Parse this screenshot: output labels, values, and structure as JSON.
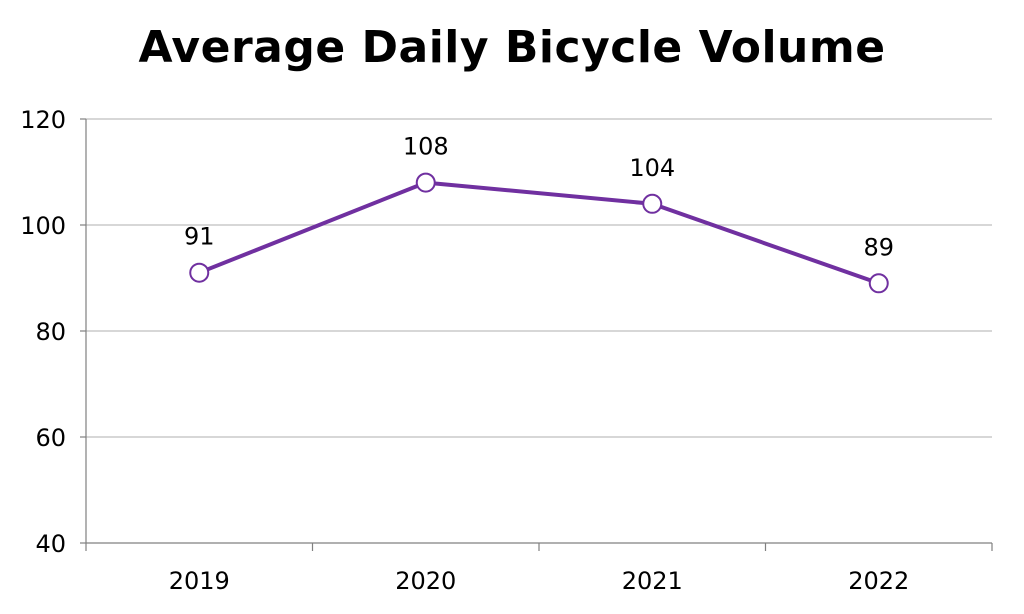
{
  "chart_data": {
    "type": "line",
    "title": "Average Daily Bicycle Volume",
    "xlabel": "",
    "ylabel": "",
    "categories": [
      "2019",
      "2020",
      "2021",
      "2022"
    ],
    "series": [
      {
        "values": [
          91,
          108,
          104,
          89
        ],
        "data_labels": [
          "91",
          "108",
          "104",
          "89"
        ]
      }
    ],
    "ylim": [
      40,
      120
    ],
    "yticks": [
      40,
      60,
      80,
      100,
      120
    ],
    "ytick_labels": [
      "40",
      "60",
      "80",
      "100",
      "120"
    ],
    "grid": true,
    "legend": "none",
    "line_color": "#7030a0",
    "marker_fill": "#ffffff",
    "grid_color": "#bfbfbf",
    "axis_color": "#808080"
  }
}
